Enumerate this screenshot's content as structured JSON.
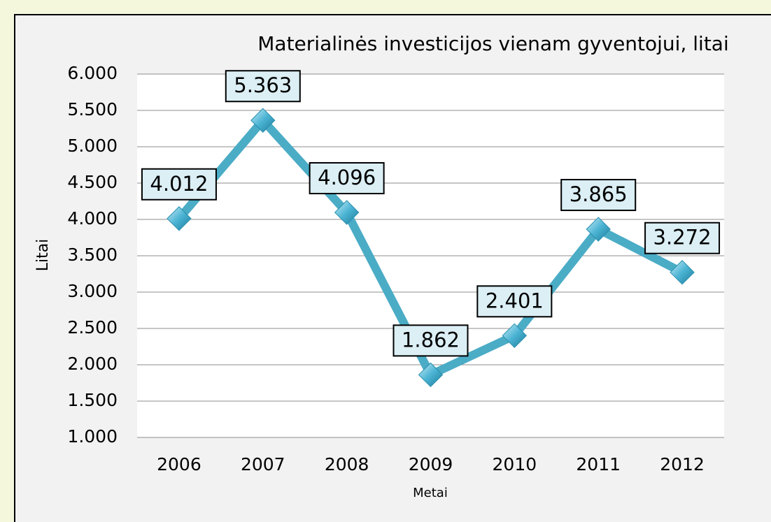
{
  "chart_data": {
    "type": "line",
    "title": "Materialinės investicijos vienam gyventojui, litai",
    "x_label": "Metai",
    "y_label": "Litai",
    "categories": [
      "2006",
      "2007",
      "2008",
      "2009",
      "2010",
      "2011",
      "2012"
    ],
    "series": [
      {
        "name": "Materialinės investicijos vienam gyventojui, litai",
        "color": "#4bacc6",
        "values": [
          4012,
          5363,
          4096,
          1862,
          2401,
          3865,
          3272
        ],
        "value_labels": [
          "4.012",
          "5.363",
          "4.096",
          "1.862",
          "2.401",
          "3.865",
          "3.272"
        ]
      }
    ],
    "ylim": [
      1000,
      6000
    ],
    "yticks": [
      {
        "value": 1000,
        "label": "1.000"
      },
      {
        "value": 1500,
        "label": "1.500"
      },
      {
        "value": 2000,
        "label": "2.000"
      },
      {
        "value": 2500,
        "label": "2.500"
      },
      {
        "value": 3000,
        "label": "3.000"
      },
      {
        "value": 3500,
        "label": "3.500"
      },
      {
        "value": 4000,
        "label": "4.000"
      },
      {
        "value": 4500,
        "label": "4.500"
      },
      {
        "value": 5000,
        "label": "5.000"
      },
      {
        "value": 5500,
        "label": "5.500"
      },
      {
        "value": 6000,
        "label": "6.000"
      }
    ],
    "grid": true
  }
}
